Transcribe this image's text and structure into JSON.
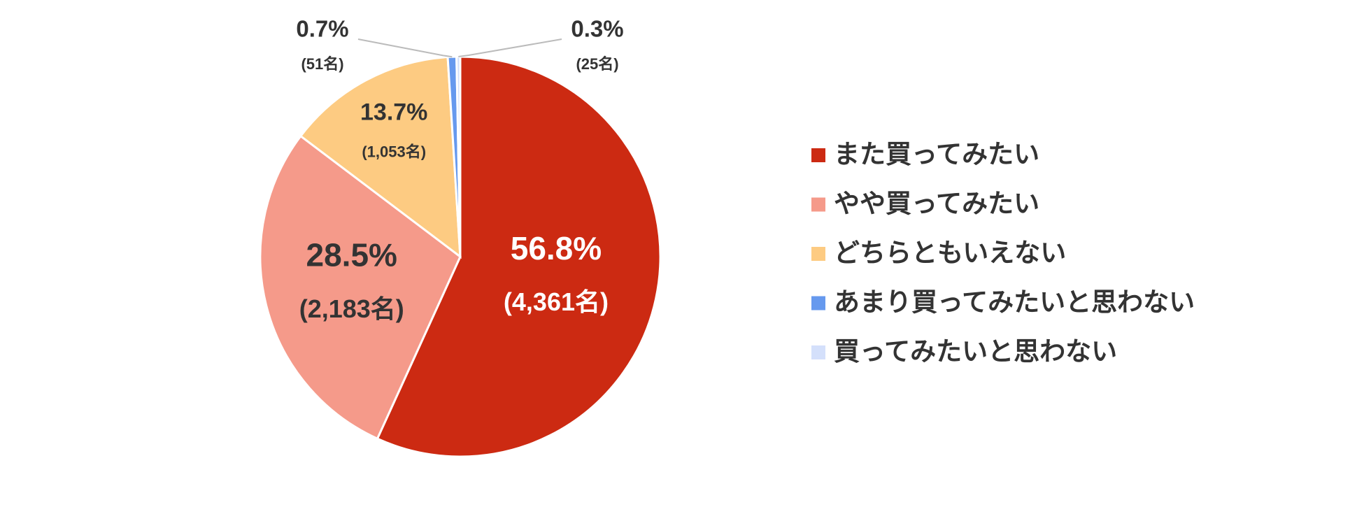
{
  "chart_data": {
    "type": "pie",
    "categories": [
      "また買ってみたい",
      "やや買ってみたい",
      "どちらともいえない",
      "あまり買ってみたいと思わない",
      "買ってみたいと思わない"
    ],
    "values": [
      56.8,
      28.5,
      13.7,
      0.7,
      0.3
    ],
    "value_labels": [
      "56.8%",
      "28.5%",
      "13.7%",
      "0.7%",
      "0.3%"
    ],
    "count_labels": [
      "(4,361名)",
      "(2,183名)",
      "(1,053名)",
      "(51名)",
      "(25名)"
    ],
    "colors": [
      "#cc2a12",
      "#f59a8a",
      "#fdcb82",
      "#6699ee",
      "#d4e0fb"
    ],
    "legend": "right"
  }
}
